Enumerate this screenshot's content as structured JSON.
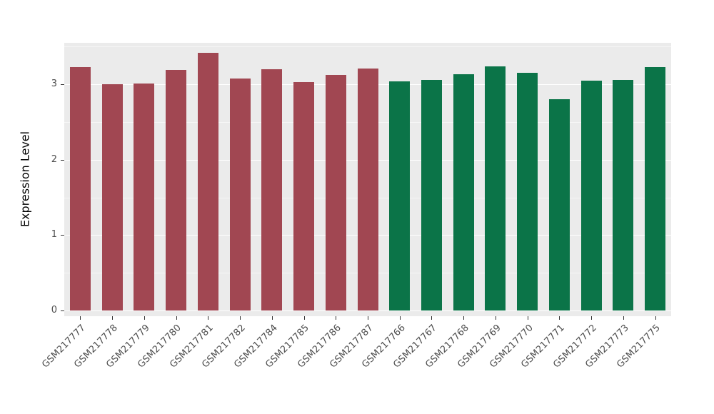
{
  "chart_data": {
    "type": "bar",
    "title": "",
    "xlabel": "",
    "ylabel": "Expression Level",
    "categories": [
      "GSM217777",
      "GSM217778",
      "GSM217779",
      "GSM217780",
      "GSM217781",
      "GSM217782",
      "GSM217784",
      "GSM217785",
      "GSM217786",
      "GSM217787",
      "GSM217766",
      "GSM217767",
      "GSM217768",
      "GSM217769",
      "GSM217770",
      "GSM217771",
      "GSM217772",
      "GSM217773",
      "GSM217775"
    ],
    "values": [
      3.23,
      3.0,
      3.01,
      3.19,
      3.42,
      3.08,
      3.2,
      3.03,
      3.12,
      3.21,
      3.04,
      3.06,
      3.13,
      3.24,
      3.15,
      2.8,
      3.05,
      3.06,
      3.23
    ],
    "groups": [
      "A",
      "A",
      "A",
      "A",
      "A",
      "A",
      "A",
      "A",
      "A",
      "A",
      "B",
      "B",
      "B",
      "B",
      "B",
      "B",
      "B",
      "B",
      "B"
    ],
    "group_colors": {
      "A": "#A14752",
      "B": "#0B7448"
    },
    "ylim": [
      0,
      3.55
    ],
    "yticks": [
      0,
      1,
      2,
      3
    ],
    "minor_ticks": [
      0.5,
      1.5,
      2.5,
      3.5
    ],
    "grid": true,
    "legend": "none",
    "panel_background": "#EBEBEB"
  }
}
